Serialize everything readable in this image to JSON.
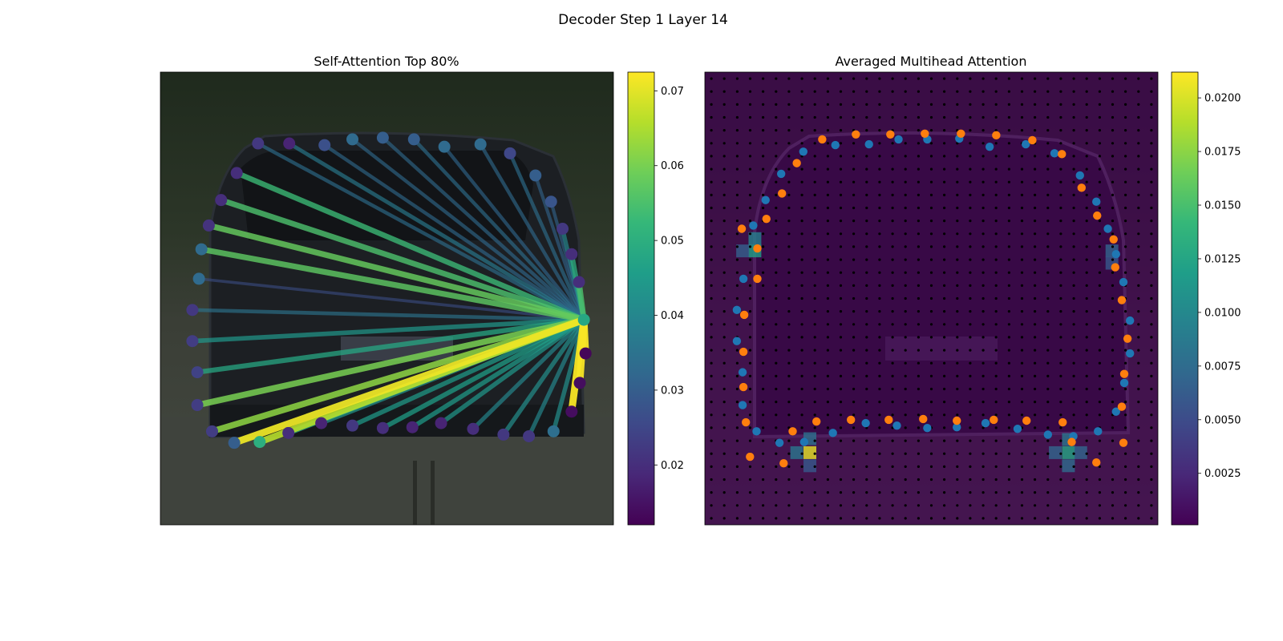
{
  "figure": {
    "suptitle": "Decoder Step 1 Layer 14"
  },
  "colors": {
    "viridis": [
      "#440154",
      "#482878",
      "#3e4989",
      "#31688e",
      "#26828e",
      "#1f9e89",
      "#35b779",
      "#6ece58",
      "#b5de2b",
      "#fde725"
    ],
    "point_blue": "#1f77b4",
    "point_orange": "#ff7f0e",
    "grid_dot": "#000000",
    "photo_ground": "#3b3f36",
    "photo_sky": "#2b3a26",
    "car_body": "#1b1f24"
  },
  "chart_data": [
    {
      "type": "line",
      "title": "Self-Attention Top 80%",
      "description_kind": "attention lines from query point to polygon vertices over camera image",
      "colorbar": {
        "min": 0.012,
        "max": 0.0725,
        "ticks": [
          0.02,
          0.03,
          0.04,
          0.05,
          0.06,
          0.07
        ],
        "tick_labels": [
          "0.02",
          "0.03",
          "0.04",
          "0.05",
          "0.06",
          "0.07"
        ]
      },
      "x_range": [
        0,
        552
      ],
      "y_range": [
        552,
        0
      ],
      "query_point": {
        "x": 516,
        "y": 302,
        "value": 0.048
      },
      "points": [
        {
          "x": 119,
          "y": 87,
          "value": 0.022
        },
        {
          "x": 157,
          "y": 87,
          "value": 0.018
        },
        {
          "x": 200,
          "y": 89,
          "value": 0.027
        },
        {
          "x": 234,
          "y": 82,
          "value": 0.033
        },
        {
          "x": 271,
          "y": 80,
          "value": 0.03
        },
        {
          "x": 309,
          "y": 82,
          "value": 0.03
        },
        {
          "x": 346,
          "y": 91,
          "value": 0.033
        },
        {
          "x": 390,
          "y": 88,
          "value": 0.033
        },
        {
          "x": 426,
          "y": 99,
          "value": 0.025
        },
        {
          "x": 457,
          "y": 126,
          "value": 0.03
        },
        {
          "x": 476,
          "y": 158,
          "value": 0.028
        },
        {
          "x": 490,
          "y": 191,
          "value": 0.022
        },
        {
          "x": 501,
          "y": 222,
          "value": 0.02
        },
        {
          "x": 510,
          "y": 256,
          "value": 0.02
        },
        {
          "x": 518,
          "y": 343,
          "value": 0.013
        },
        {
          "x": 511,
          "y": 379,
          "value": 0.014
        },
        {
          "x": 501,
          "y": 414,
          "value": 0.014
        },
        {
          "x": 479,
          "y": 438,
          "value": 0.034
        },
        {
          "x": 449,
          "y": 444,
          "value": 0.022
        },
        {
          "x": 418,
          "y": 442,
          "value": 0.022
        },
        {
          "x": 381,
          "y": 435,
          "value": 0.02
        },
        {
          "x": 342,
          "y": 428,
          "value": 0.018
        },
        {
          "x": 307,
          "y": 433,
          "value": 0.018
        },
        {
          "x": 271,
          "y": 434,
          "value": 0.02
        },
        {
          "x": 234,
          "y": 431,
          "value": 0.022
        },
        {
          "x": 196,
          "y": 428,
          "value": 0.018
        },
        {
          "x": 156,
          "y": 440,
          "value": 0.02
        },
        {
          "x": 121,
          "y": 451,
          "value": 0.05
        },
        {
          "x": 90,
          "y": 452,
          "value": 0.03
        },
        {
          "x": 63,
          "y": 438,
          "value": 0.023
        },
        {
          "x": 45,
          "y": 406,
          "value": 0.023
        },
        {
          "x": 45,
          "y": 366,
          "value": 0.024
        },
        {
          "x": 39,
          "y": 328,
          "value": 0.023
        },
        {
          "x": 39,
          "y": 290,
          "value": 0.022
        },
        {
          "x": 47,
          "y": 252,
          "value": 0.033
        },
        {
          "x": 50,
          "y": 216,
          "value": 0.033
        },
        {
          "x": 59,
          "y": 187,
          "value": 0.021
        },
        {
          "x": 74,
          "y": 156,
          "value": 0.02
        },
        {
          "x": 93,
          "y": 123,
          "value": 0.02
        }
      ],
      "edges": [
        {
          "to": 0,
          "value": 0.034
        },
        {
          "to": 1,
          "value": 0.037
        },
        {
          "to": 2,
          "value": 0.033
        },
        {
          "to": 3,
          "value": 0.033
        },
        {
          "to": 4,
          "value": 0.033
        },
        {
          "to": 5,
          "value": 0.034
        },
        {
          "to": 6,
          "value": 0.032
        },
        {
          "to": 7,
          "value": 0.033
        },
        {
          "to": 8,
          "value": 0.034
        },
        {
          "to": 9,
          "value": 0.031
        },
        {
          "to": 10,
          "value": 0.031
        },
        {
          "to": 11,
          "value": 0.04
        },
        {
          "to": 12,
          "value": 0.05
        },
        {
          "to": 13,
          "value": 0.055
        },
        {
          "to": 14,
          "value": 0.072
        },
        {
          "to": 15,
          "value": 0.072
        },
        {
          "to": 16,
          "value": 0.072
        },
        {
          "to": 17,
          "value": 0.042
        },
        {
          "to": 18,
          "value": 0.04
        },
        {
          "to": 19,
          "value": 0.042
        },
        {
          "to": 20,
          "value": 0.04
        },
        {
          "to": 21,
          "value": 0.044
        },
        {
          "to": 22,
          "value": 0.045
        },
        {
          "to": 23,
          "value": 0.046
        },
        {
          "to": 24,
          "value": 0.045
        },
        {
          "to": 25,
          "value": 0.043
        },
        {
          "to": 26,
          "value": 0.05
        },
        {
          "to": 27,
          "value": 0.066
        },
        {
          "to": 28,
          "value": 0.071
        },
        {
          "to": 29,
          "value": 0.062
        },
        {
          "to": 30,
          "value": 0.06
        },
        {
          "to": 31,
          "value": 0.048
        },
        {
          "to": 32,
          "value": 0.044
        },
        {
          "to": 33,
          "value": 0.035
        },
        {
          "to": 34,
          "value": 0.027
        },
        {
          "to": 35,
          "value": 0.057
        },
        {
          "to": 36,
          "value": 0.058
        },
        {
          "to": 37,
          "value": 0.055
        },
        {
          "to": 38,
          "value": 0.053
        }
      ]
    },
    {
      "type": "heatmap",
      "title": "Averaged Multihead Attention",
      "colorbar": {
        "min": 0.0001,
        "max": 0.0212,
        "ticks": [
          0.0025,
          0.005,
          0.0075,
          0.01,
          0.0125,
          0.015,
          0.0175,
          0.02
        ],
        "tick_labels": [
          "0.0025",
          "0.0050",
          "0.0075",
          "0.0100",
          "0.0125",
          "0.0150",
          "0.0175",
          "0.0200"
        ]
      },
      "x_range": [
        0,
        552
      ],
      "y_range": [
        552,
        0
      ],
      "grid": true,
      "hot_cells": [
        {
          "x": 128,
          "y": 464,
          "value": 0.0205
        },
        {
          "x": 443,
          "y": 464,
          "value": 0.0125
        },
        {
          "x": 61,
          "y": 218,
          "value": 0.012
        },
        {
          "x": 61,
          "y": 203,
          "value": 0.0095
        },
        {
          "x": 112,
          "y": 464,
          "value": 0.0085
        },
        {
          "x": 128,
          "y": 447,
          "value": 0.008
        },
        {
          "x": 443,
          "y": 448,
          "value": 0.0085
        },
        {
          "x": 427,
          "y": 464,
          "value": 0.007
        },
        {
          "x": 458,
          "y": 464,
          "value": 0.007
        },
        {
          "x": 443,
          "y": 480,
          "value": 0.0075
        },
        {
          "x": 128,
          "y": 480,
          "value": 0.006
        },
        {
          "x": 496,
          "y": 218,
          "value": 0.007
        },
        {
          "x": 496,
          "y": 233,
          "value": 0.006
        },
        {
          "x": 46,
          "y": 218,
          "value": 0.0065
        }
      ],
      "series": [
        {
          "name": "",
          "color_key": "point_blue",
          "points": [
            {
              "x": 120,
              "y": 97
            },
            {
              "x": 159,
              "y": 89
            },
            {
              "x": 200,
              "y": 88
            },
            {
              "x": 236,
              "y": 82
            },
            {
              "x": 271,
              "y": 82
            },
            {
              "x": 310,
              "y": 81
            },
            {
              "x": 347,
              "y": 91
            },
            {
              "x": 391,
              "y": 88
            },
            {
              "x": 426,
              "y": 99
            },
            {
              "x": 457,
              "y": 126
            },
            {
              "x": 477,
              "y": 158
            },
            {
              "x": 491,
              "y": 191
            },
            {
              "x": 501,
              "y": 222
            },
            {
              "x": 510,
              "y": 256
            },
            {
              "x": 518,
              "y": 303
            },
            {
              "x": 518,
              "y": 343
            },
            {
              "x": 511,
              "y": 379
            },
            {
              "x": 501,
              "y": 414
            },
            {
              "x": 479,
              "y": 438
            },
            {
              "x": 449,
              "y": 444
            },
            {
              "x": 418,
              "y": 442
            },
            {
              "x": 381,
              "y": 435
            },
            {
              "x": 342,
              "y": 428
            },
            {
              "x": 307,
              "y": 433
            },
            {
              "x": 271,
              "y": 434
            },
            {
              "x": 234,
              "y": 431
            },
            {
              "x": 196,
              "y": 428
            },
            {
              "x": 156,
              "y": 440
            },
            {
              "x": 121,
              "y": 451
            },
            {
              "x": 91,
              "y": 452
            },
            {
              "x": 63,
              "y": 438
            },
            {
              "x": 46,
              "y": 406
            },
            {
              "x": 46,
              "y": 366
            },
            {
              "x": 39,
              "y": 328
            },
            {
              "x": 39,
              "y": 290
            },
            {
              "x": 47,
              "y": 252
            },
            {
              "x": 59,
              "y": 187
            },
            {
              "x": 74,
              "y": 156
            },
            {
              "x": 93,
              "y": 124
            }
          ]
        },
        {
          "name": "",
          "color_key": "point_orange",
          "points": [
            {
              "x": 143,
              "y": 82
            },
            {
              "x": 184,
              "y": 76
            },
            {
              "x": 226,
              "y": 76
            },
            {
              "x": 268,
              "y": 75
            },
            {
              "x": 312,
              "y": 75
            },
            {
              "x": 355,
              "y": 77
            },
            {
              "x": 399,
              "y": 83
            },
            {
              "x": 435,
              "y": 100
            },
            {
              "x": 459,
              "y": 141
            },
            {
              "x": 478,
              "y": 175
            },
            {
              "x": 498,
              "y": 204
            },
            {
              "x": 500,
              "y": 238
            },
            {
              "x": 508,
              "y": 278
            },
            {
              "x": 515,
              "y": 325
            },
            {
              "x": 511,
              "y": 368
            },
            {
              "x": 508,
              "y": 408
            },
            {
              "x": 510,
              "y": 452
            },
            {
              "x": 477,
              "y": 476
            },
            {
              "x": 447,
              "y": 451
            },
            {
              "x": 436,
              "y": 427
            },
            {
              "x": 392,
              "y": 425
            },
            {
              "x": 352,
              "y": 424
            },
            {
              "x": 307,
              "y": 425
            },
            {
              "x": 266,
              "y": 423
            },
            {
              "x": 224,
              "y": 424
            },
            {
              "x": 178,
              "y": 424
            },
            {
              "x": 136,
              "y": 426
            },
            {
              "x": 107,
              "y": 438
            },
            {
              "x": 96,
              "y": 477
            },
            {
              "x": 55,
              "y": 469
            },
            {
              "x": 50,
              "y": 427
            },
            {
              "x": 47,
              "y": 384
            },
            {
              "x": 47,
              "y": 341
            },
            {
              "x": 48,
              "y": 296
            },
            {
              "x": 64,
              "y": 252
            },
            {
              "x": 64,
              "y": 215
            },
            {
              "x": 75,
              "y": 179
            },
            {
              "x": 94,
              "y": 148
            },
            {
              "x": 112,
              "y": 111
            },
            {
              "x": 45,
              "y": 191
            }
          ]
        }
      ]
    }
  ]
}
